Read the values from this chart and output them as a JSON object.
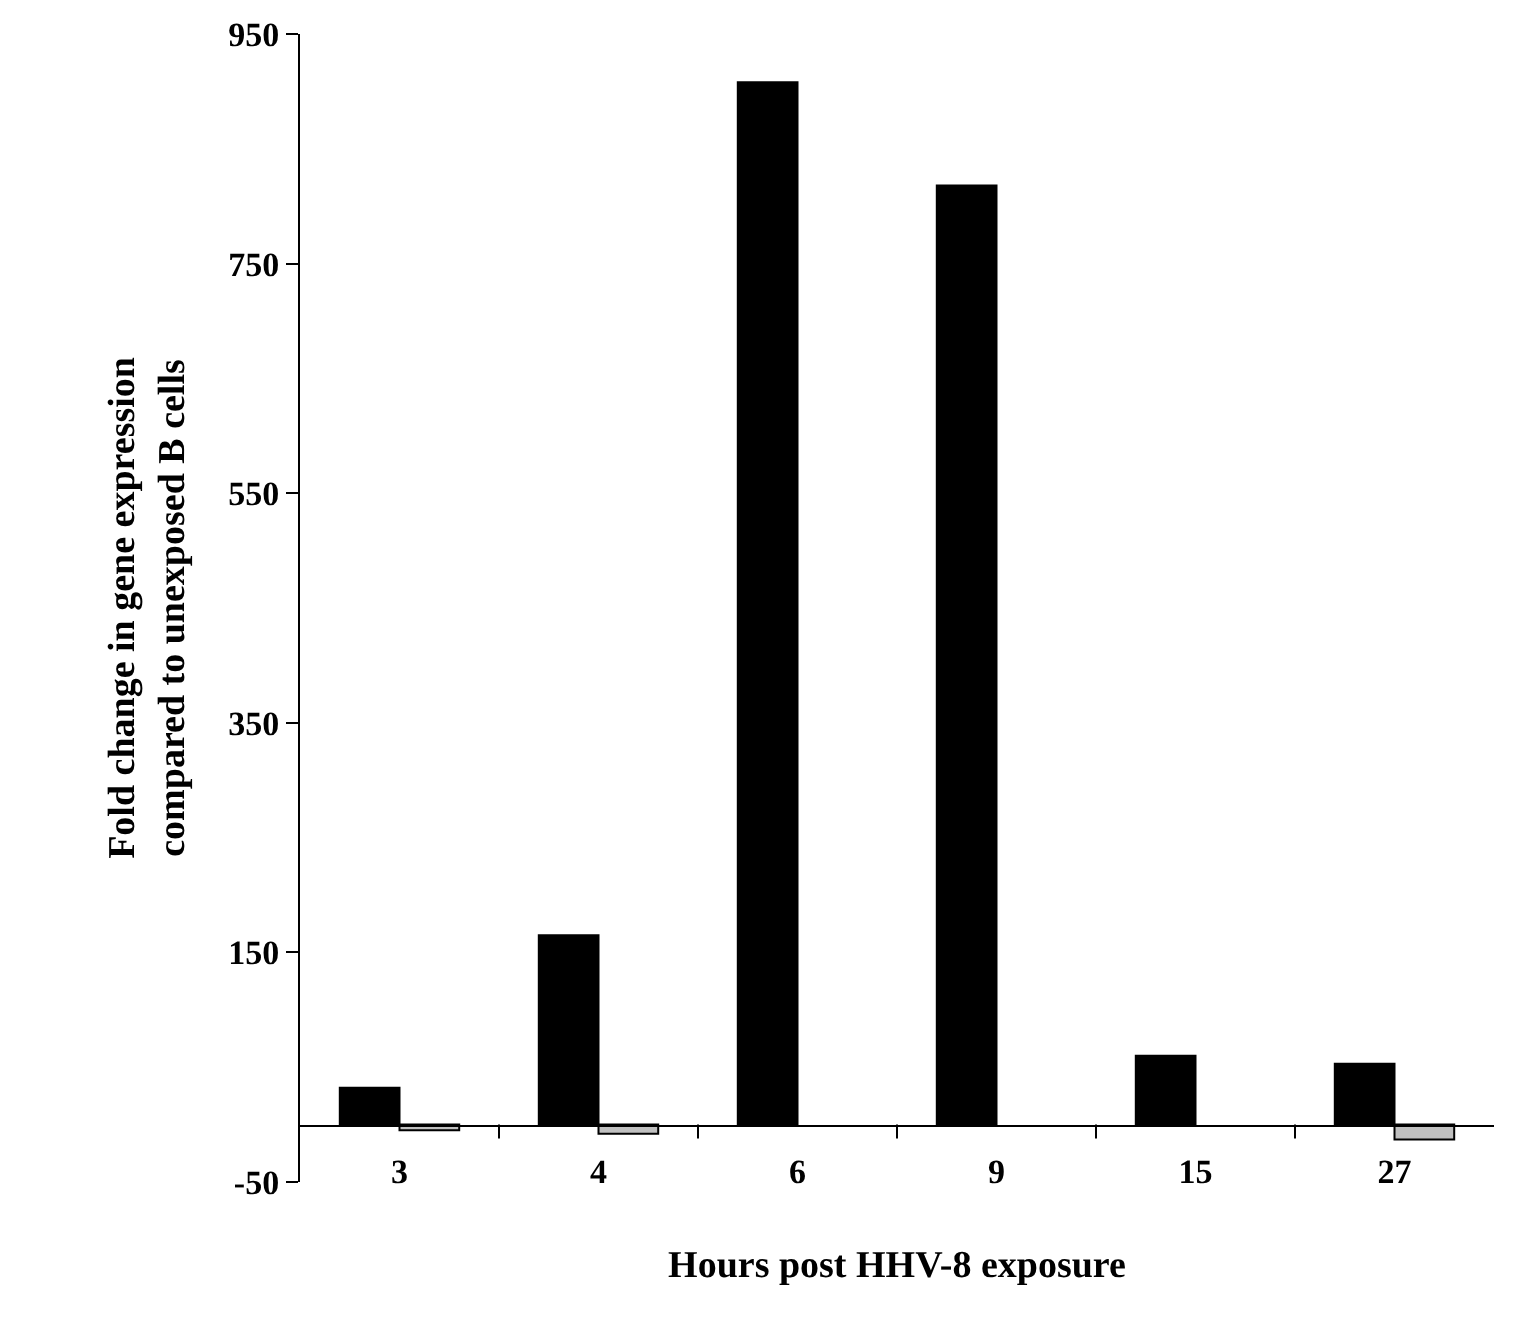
{
  "chart_data": {
    "type": "bar",
    "xlabel": "Hours post HHV-8 exposure",
    "ylabel": "Fold change in gene expression\ncompared to unexposed B cells",
    "categories": [
      "3",
      "4",
      "6",
      "9",
      "15",
      "27"
    ],
    "series": [
      {
        "color": "#000000",
        "values": [
          32,
          165,
          908,
          818,
          60,
          53
        ]
      },
      {
        "color": "#c0c0c0",
        "values": [
          -5,
          -8,
          null,
          null,
          null,
          -13
        ]
      }
    ],
    "ylim": [
      -50,
      950
    ],
    "yticks": [
      -50,
      150,
      350,
      550,
      750,
      950
    ]
  }
}
